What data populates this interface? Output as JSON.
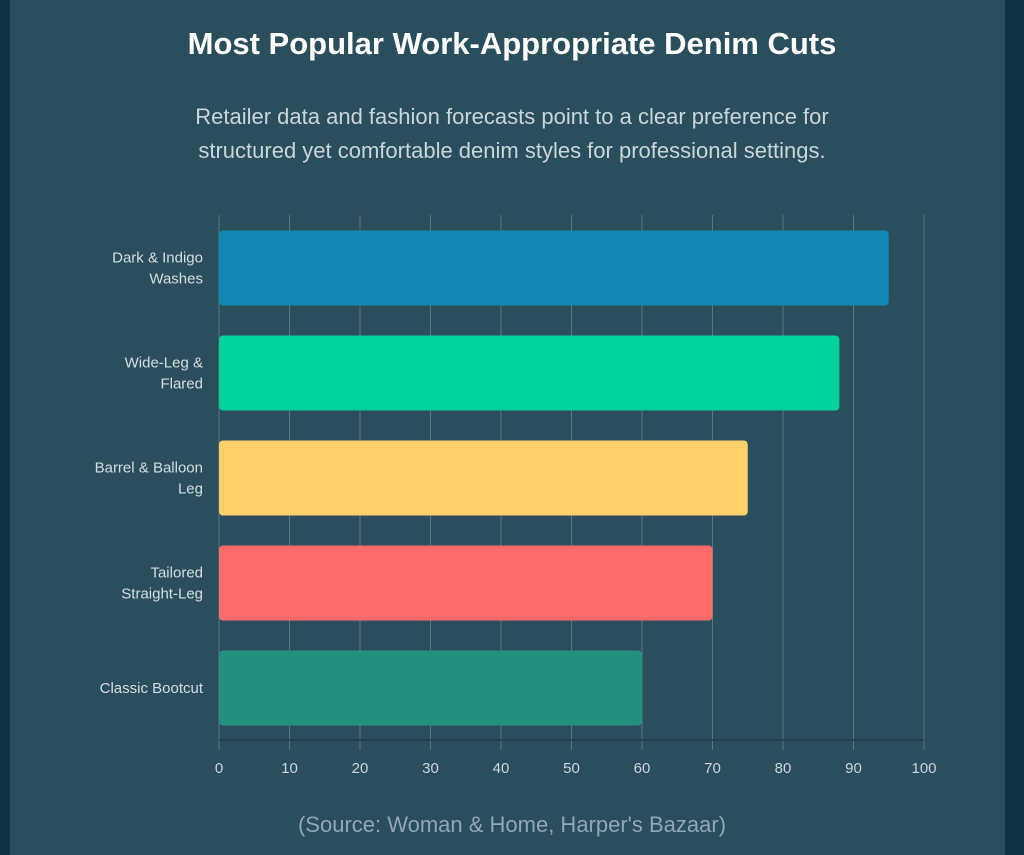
{
  "title": "Most Popular Work-Appropriate Denim Cuts",
  "subtitle_line1": "Retailer data and fashion forecasts point to a clear preference for",
  "subtitle_line2": "structured yet comfortable denim styles for professional settings.",
  "source": "(Source: Woman & Home, Harper's Bazaar)",
  "chart_data": {
    "type": "bar",
    "orientation": "horizontal",
    "categories": [
      [
        "Dark & Indigo",
        "Washes"
      ],
      [
        "Wide-Leg &",
        "Flared"
      ],
      [
        "Barrel & Balloon",
        "Leg"
      ],
      [
        "Tailored",
        "Straight-Leg"
      ],
      [
        "Classic Bootcut"
      ]
    ],
    "values": [
      95,
      88,
      75,
      70,
      60
    ],
    "colors": [
      "#1387b3",
      "#00d39a",
      "#ffd06a",
      "#ff6b6b",
      "#23917d"
    ],
    "xlim": [
      0,
      100
    ],
    "xticks": [
      0,
      10,
      20,
      30,
      40,
      50,
      60,
      70,
      80,
      90,
      100
    ],
    "grid": true,
    "xlabel": "",
    "ylabel": ""
  }
}
